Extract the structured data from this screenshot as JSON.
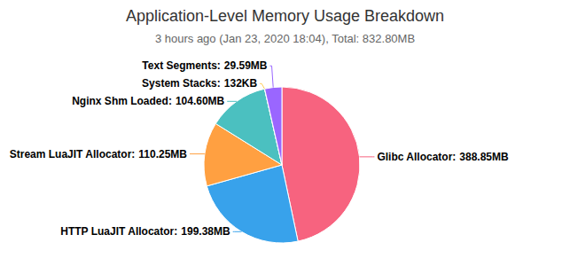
{
  "chart_data": {
    "type": "pie",
    "title": "Application-Level Memory Usage Breakdown",
    "subtitle": "3 hours ago (Jan 23, 2020 18:04), Total: 832.80MB",
    "categories": [
      "Glibc Allocator",
      "HTTP LuaJIT Allocator",
      "Stream LuaJIT Allocator",
      "Nginx Shm Loaded",
      "System Stacks",
      "Text Segments"
    ],
    "values": [
      388.85,
      199.38,
      110.25,
      104.6,
      0.132,
      29.59
    ],
    "value_labels": [
      "388.85MB",
      "199.38MB",
      "110.25MB",
      "104.60MB",
      "132KB",
      "29.59MB"
    ],
    "colors": [
      "#f7637f",
      "#38a2eb",
      "#ffa041",
      "#4bc0c0",
      "#ffcd56",
      "#9a66ff"
    ],
    "data_labels": true
  }
}
